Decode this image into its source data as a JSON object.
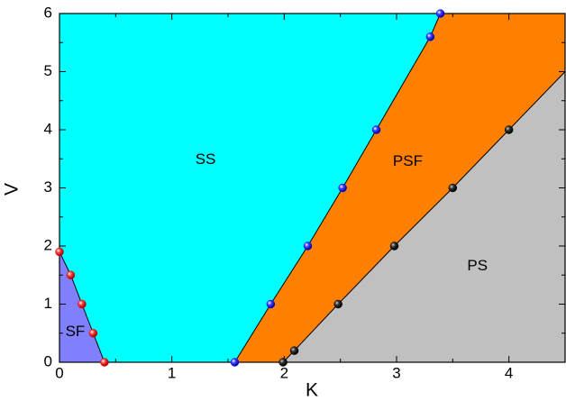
{
  "chart_data": {
    "type": "phase-diagram",
    "xlabel": "K",
    "ylabel": "V",
    "xlim": [
      0,
      4.5
    ],
    "ylim": [
      0,
      6
    ],
    "xticks": [
      0,
      1,
      2,
      3,
      4
    ],
    "yticks": [
      0,
      1,
      2,
      3,
      4,
      5,
      6
    ],
    "series": [
      {
        "color": "#e00000",
        "x": [
          0,
          0.1,
          0.2,
          0.3,
          0.4
        ],
        "y": [
          1.9,
          1.5,
          1.0,
          0.5,
          0
        ]
      },
      {
        "color": "#1010e0",
        "x": [
          1.56,
          1.88,
          2.21,
          2.52,
          2.82,
          3.3,
          3.39
        ],
        "y": [
          0,
          1.0,
          2.0,
          3.0,
          4.0,
          5.6,
          6.0
        ]
      },
      {
        "color": "#000000",
        "x": [
          1.99,
          2.09,
          2.48,
          2.98,
          3.5,
          4.0
        ],
        "y": [
          0,
          0.2,
          1.0,
          2.0,
          3.0,
          4.0
        ]
      }
    ],
    "regions": [
      {
        "label": "SF",
        "color": "#8080ff"
      },
      {
        "label": "SS",
        "color": "#00ffff"
      },
      {
        "label": "PSF",
        "color": "#ff8000"
      },
      {
        "label": "PS",
        "color": "#c0c0c0"
      }
    ]
  }
}
